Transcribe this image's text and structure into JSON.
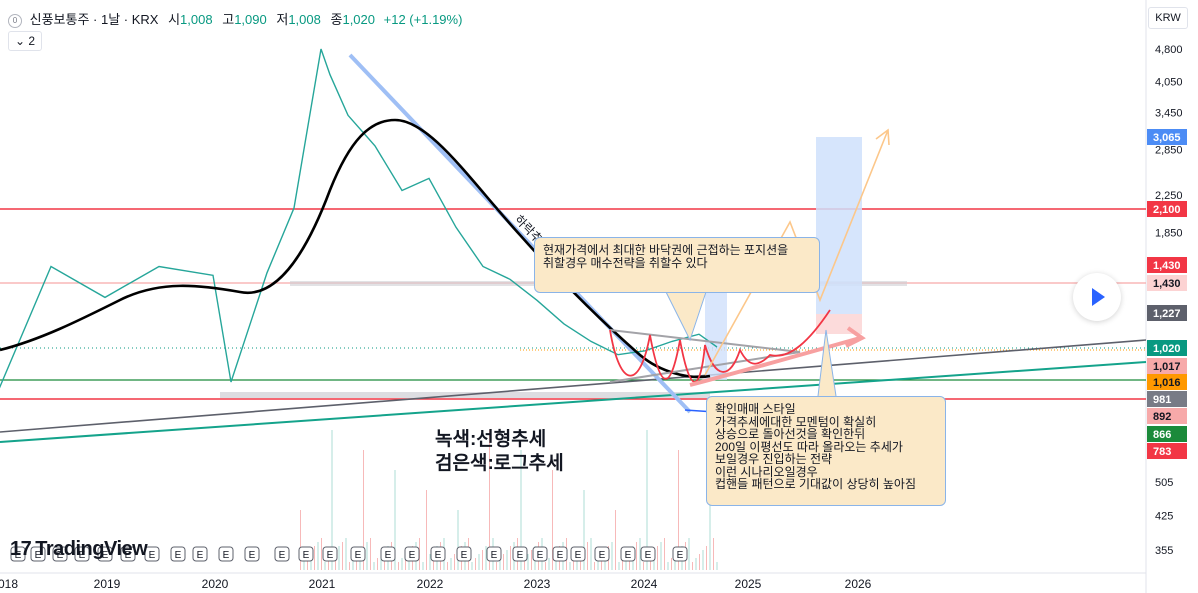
{
  "header": {
    "symbol": "신풍보통주 · 1날 · KRX",
    "open_label": "시",
    "open": "1,008",
    "high_label": "고",
    "high": "1,090",
    "low_label": "저",
    "low": "1,008",
    "close_label": "종",
    "close": "1,020",
    "change": "+12 (+1.19%)"
  },
  "indicator_button": "2",
  "currency": "KRW",
  "brand": "TradingView",
  "annotations": {
    "trend_label": "하락추",
    "note_top": "현재가격에서 최대한 바닥권에 근접하는 포지션을\n취할경우 매수전략을 취할수 있다",
    "note_bottom": "확인매매 스타일\n가격추세에대한 모멘텀이 확실히\n상승으로 돌아선것을 확인한뒤\n200일 이평선도 따라 올라오는 추세가\n보일경우 진입하는 전략\n이런 시나리오일경우\n컵핸들 패턴으로 기대값이 상당히 높아짐",
    "legend_text": "녹색:선형추세\n검은색:로그추세"
  },
  "chart_data": {
    "type": "line",
    "yscale": "log",
    "y_ticks": [
      4800,
      4050,
      3450,
      2850,
      2250,
      1850,
      505,
      425,
      355
    ],
    "x_ticks": [
      "018",
      "2019",
      "2020",
      "2021",
      "2022",
      "2023",
      "2024",
      "2025",
      "2026"
    ],
    "series": [
      {
        "x": [
          "2018-01",
          "2018-07",
          "2019-01",
          "2019-07",
          "2020-01",
          "2020-03",
          "2020-07",
          "2020-10",
          "2021-01",
          "2021-02",
          "2021-04",
          "2021-07",
          "2021-10",
          "2022-01",
          "2022-04",
          "2022-07",
          "2022-10",
          "2023-01",
          "2023-04",
          "2023-07",
          "2023-10",
          "2024-01",
          "2024-04",
          "2024-07",
          "2024-09"
        ],
        "y": [
          800,
          1550,
          1320,
          1550,
          1480,
          850,
          1500,
          2100,
          4800,
          4200,
          3400,
          2900,
          2300,
          2450,
          1900,
          1550,
          1450,
          1300,
          1150,
          1050,
          980,
          1000,
          1050,
          1090,
          1020
        ]
      }
    ],
    "price_labels": [
      {
        "value": "3,065",
        "color": "#4c8cf5"
      },
      {
        "value": "2,100",
        "color": "#f23645"
      },
      {
        "value": "1,430",
        "color": "#f23645"
      },
      {
        "value": "1,430",
        "color": "#fcd3d3"
      },
      {
        "value": "1,227",
        "color": "#5d606b"
      },
      {
        "value": "1,020",
        "color": "#089981"
      },
      {
        "value": "1,017",
        "color": "#f7a9a9"
      },
      {
        "value": "1,016",
        "color": "#ff9800"
      },
      {
        "value": "981",
        "color": "#787b86"
      },
      {
        "value": "892",
        "color": "#f7a9a9"
      },
      {
        "value": "866",
        "color": "#1b8a3a"
      },
      {
        "value": "783",
        "color": "#f23645"
      }
    ],
    "event_marker": "E"
  }
}
